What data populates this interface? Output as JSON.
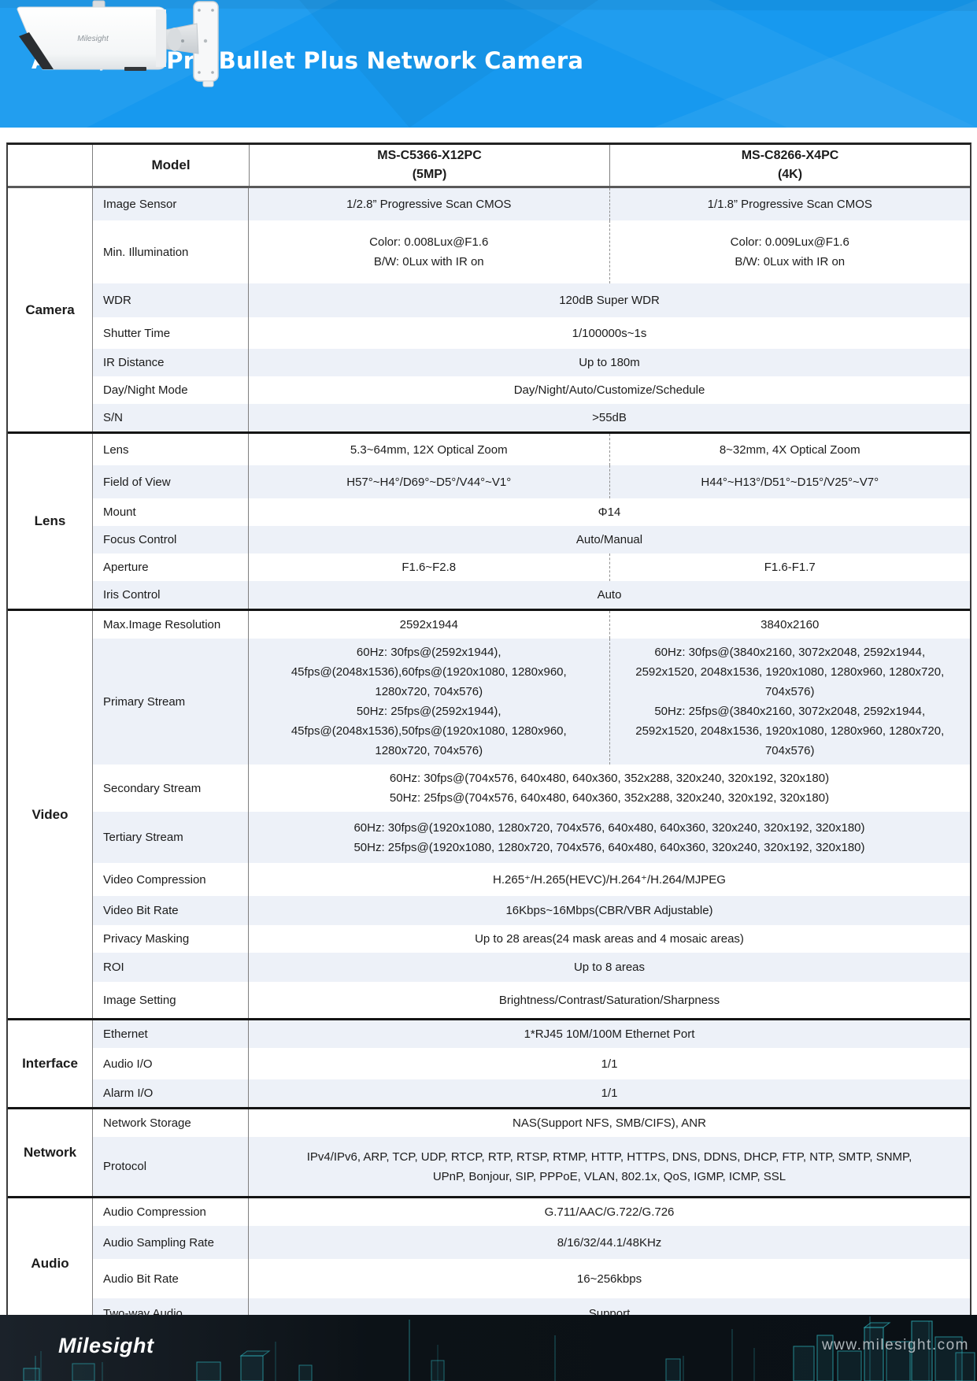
{
  "header": {
    "title": "AI 4X/12X Pro Bullet Plus Network Camera",
    "product_image": "bullet-camera-side-view",
    "brand_on_camera": "Milesight"
  },
  "colors": {
    "header_blue": "#1799ef",
    "row_shade": "#edf1f8",
    "footer_bg": "#0c1116",
    "footer_teal": "#2fb9c3"
  },
  "table": {
    "model_label": "Model",
    "models": [
      {
        "name": "MS-C5366-X12PC",
        "variant": "(5MP)"
      },
      {
        "name": "MS-C8266-X4PC",
        "variant": "(4K)"
      }
    ],
    "sections": [
      {
        "name": "Camera",
        "rows": [
          {
            "label": "Image Sensor",
            "shade": true,
            "values": [
              "1/2.8” Progressive Scan CMOS",
              "1/1.8” Progressive Scan CMOS"
            ]
          },
          {
            "label": "Min. Illumination",
            "shade": false,
            "values": [
              "Color: 0.008Lux@F1.6\nB/W: 0Lux with IR on",
              "Color: 0.009Lux@F1.6\nB/W: 0Lux with IR on"
            ]
          },
          {
            "label": "WDR",
            "shade": true,
            "value": "120dB Super WDR"
          },
          {
            "label": "Shutter Time",
            "shade": false,
            "value": "1/100000s~1s"
          },
          {
            "label": "IR Distance",
            "shade": true,
            "value": "Up to 180m"
          },
          {
            "label": "Day/Night Mode",
            "shade": false,
            "value": "Day/Night/Auto/Customize/Schedule"
          },
          {
            "label": "S/N",
            "shade": true,
            "value": ">55dB"
          }
        ]
      },
      {
        "name": "Lens",
        "rows": [
          {
            "label": "Lens",
            "shade": false,
            "values": [
              "5.3~64mm, 12X Optical Zoom",
              "8~32mm, 4X Optical Zoom"
            ]
          },
          {
            "label": "Field of View",
            "shade": true,
            "values": [
              "H57°~H4°/D69°~D5°/V44°~V1°",
              "H44°~H13°/D51°~D15°/V25°~V7°"
            ]
          },
          {
            "label": "Mount",
            "shade": false,
            "value": "Φ14"
          },
          {
            "label": "Focus Control",
            "shade": true,
            "value": "Auto/Manual"
          },
          {
            "label": "Aperture",
            "shade": false,
            "values": [
              "F1.6~F2.8",
              "F1.6-F1.7"
            ]
          },
          {
            "label": "Iris Control",
            "shade": true,
            "value": "Auto"
          }
        ]
      },
      {
        "name": "Video",
        "rows": [
          {
            "label": "Max.Image Resolution",
            "shade": false,
            "values": [
              "2592x1944",
              "3840x2160"
            ]
          },
          {
            "label": "Primary Stream",
            "shade": true,
            "values": [
              "60Hz: 30fps@(2592x1944),\n45fps@(2048x1536),60fps@(1920x1080, 1280x960,\n1280x720, 704x576)\n50Hz: 25fps@(2592x1944),\n45fps@(2048x1536),50fps@(1920x1080, 1280x960,\n1280x720, 704x576)",
              "60Hz: 30fps@(3840x2160, 3072x2048, 2592x1944,\n2592x1520, 2048x1536, 1920x1080, 1280x960, 1280x720,\n704x576)\n50Hz: 25fps@(3840x2160, 3072x2048, 2592x1944,\n2592x1520, 2048x1536, 1920x1080, 1280x960, 1280x720,\n704x576)"
            ]
          },
          {
            "label": "Secondary Stream",
            "shade": false,
            "value": "60Hz: 30fps@(704x576, 640x480, 640x360, 352x288, 320x240, 320x192, 320x180)\n50Hz: 25fps@(704x576, 640x480, 640x360, 352x288, 320x240, 320x192, 320x180)"
          },
          {
            "label": "Tertiary Stream",
            "shade": true,
            "value": "60Hz: 30fps@(1920x1080, 1280x720, 704x576, 640x480, 640x360, 320x240, 320x192, 320x180)\n50Hz: 25fps@(1920x1080, 1280x720, 704x576, 640x480, 640x360, 320x240, 320x192, 320x180)"
          },
          {
            "label": "Video Compression",
            "shade": false,
            "value": "H.265⁺/H.265(HEVC)/H.264⁺/H.264/MJPEG"
          },
          {
            "label": "Video Bit Rate",
            "shade": true,
            "value": "16Kbps~16Mbps(CBR/VBR Adjustable)"
          },
          {
            "label": "Privacy Masking",
            "shade": false,
            "value": "Up to 28 areas(24 mask areas and 4 mosaic areas)"
          },
          {
            "label": "ROI",
            "shade": true,
            "value": "Up to 8 areas"
          },
          {
            "label": "Image Setting",
            "shade": false,
            "value": "Brightness/Contrast/Saturation/Sharpness"
          }
        ]
      },
      {
        "name": "Interface",
        "rows": [
          {
            "label": "Ethernet",
            "shade": true,
            "value": "1*RJ45 10M/100M Ethernet Port"
          },
          {
            "label": "Audio I/O",
            "shade": false,
            "value": "1/1"
          },
          {
            "label": "Alarm I/O",
            "shade": true,
            "value": "1/1"
          }
        ]
      },
      {
        "name": "Network",
        "rows": [
          {
            "label": "Network Storage",
            "shade": false,
            "value": "NAS(Support NFS, SMB/CIFS), ANR"
          },
          {
            "label": "Protocol",
            "shade": true,
            "value": "IPv4/IPv6, ARP, TCP, UDP, RTCP, RTP, RTSP, RTMP, HTTP, HTTPS, DNS, DDNS, DHCP, FTP, NTP, SMTP, SNMP,\nUPnP, Bonjour, SIP, PPPoE, VLAN, 802.1x, QoS, IGMP, ICMP, SSL"
          }
        ]
      },
      {
        "name": "Audio",
        "rows": [
          {
            "label": "Audio Compression",
            "shade": false,
            "value": "G.711/AAC/G.722/G.726"
          },
          {
            "label": "Audio Sampling Rate",
            "shade": true,
            "value": "8/16/32/44.1/48KHz"
          },
          {
            "label": "Audio Bit Rate",
            "shade": false,
            "value": "16~256kbps"
          },
          {
            "label": "Two-way Audio",
            "shade": true,
            "value": "Support"
          }
        ]
      }
    ]
  },
  "footer": {
    "logo": "Milesight",
    "website": "www.milesight.com"
  }
}
